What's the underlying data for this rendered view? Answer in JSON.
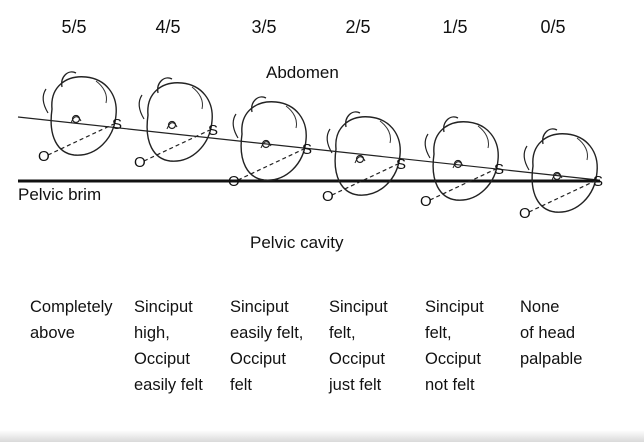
{
  "fractions": [
    "5/5",
    "4/5",
    "3/5",
    "2/5",
    "1/5",
    "0/5"
  ],
  "labels": {
    "abdomen": "Abdomen",
    "pelvic_brim": "Pelvic brim",
    "pelvic_cavity": "Pelvic cavity"
  },
  "point_labels": {
    "occiput": "O",
    "sinciput": "S"
  },
  "descriptions": [
    [
      "Completely",
      "above"
    ],
    [
      "Sinciput",
      "high,",
      "Occiput",
      "easily felt"
    ],
    [
      "Sinciput",
      "easily felt,",
      "Occiput",
      "felt"
    ],
    [
      "Sinciput",
      "felt,",
      "Occiput",
      "just felt"
    ],
    [
      "Sinciput",
      "felt,",
      "Occiput",
      "not felt"
    ],
    [
      "None",
      "of head",
      "palpable"
    ]
  ]
}
